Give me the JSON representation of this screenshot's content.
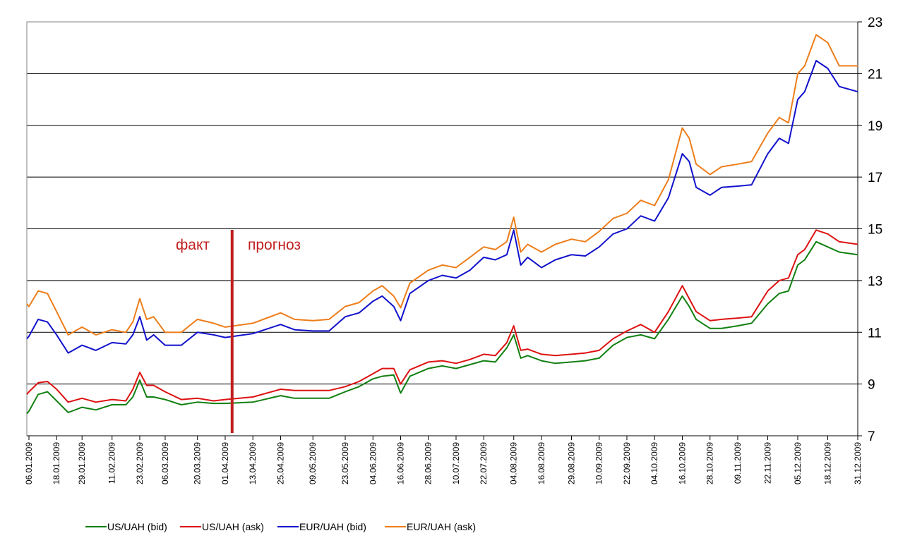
{
  "chart_data": {
    "type": "line",
    "x_ticks": [
      "06.01.2009",
      "18.01.2009",
      "29.01.2009",
      "11.02.2009",
      "23.02.2009",
      "06.03.2009",
      "20.03.2009",
      "01.04.2009",
      "13.04.2009",
      "25.04.2009",
      "09.05.2009",
      "23.05.2009",
      "04.06.2009",
      "16.06.2009",
      "28.06.2009",
      "10.07.2009",
      "22.07.2009",
      "04.08.2009",
      "16.08.2009",
      "29.08.2009",
      "10.09.2009",
      "22.09.2009",
      "04.10.2009",
      "16.10.2009",
      "28.10.2009",
      "09.11.2009",
      "22.11.2009",
      "05.12.2009",
      "18.12.2009",
      "31.12.2009"
    ],
    "y_ticks": [
      "7",
      "9",
      "11",
      "13",
      "15",
      "17",
      "19",
      "21",
      "23"
    ],
    "ylim": [
      7,
      23
    ],
    "y_axis_side": "right",
    "grid": "horizontal",
    "legend_position": "bottom",
    "annotations": [
      {
        "text": "факт",
        "color": "#c0201f"
      },
      {
        "text": "прогноз",
        "color": "#c0201f"
      }
    ],
    "divider": {
      "x": "04.04.2009",
      "color": "#c0201f"
    },
    "series": [
      {
        "name": "US/UAH (bid)",
        "color": "#118011",
        "points": [
          [
            "01.01.2009",
            7.85
          ],
          [
            "06.01.2009",
            7.95
          ],
          [
            "10.01.2009",
            8.6
          ],
          [
            "14.01.2009",
            8.7
          ],
          [
            "18.01.2009",
            8.35
          ],
          [
            "23.01.2009",
            7.9
          ],
          [
            "29.01.2009",
            8.1
          ],
          [
            "04.02.2009",
            8.0
          ],
          [
            "11.02.2009",
            8.2
          ],
          [
            "17.02.2009",
            8.2
          ],
          [
            "20.02.2009",
            8.5
          ],
          [
            "23.02.2009",
            9.15
          ],
          [
            "26.02.2009",
            8.5
          ],
          [
            "01.03.2009",
            8.5
          ],
          [
            "06.03.2009",
            8.4
          ],
          [
            "13.03.2009",
            8.2
          ],
          [
            "20.03.2009",
            8.3
          ],
          [
            "27.03.2009",
            8.25
          ],
          [
            "01.04.2009",
            8.25
          ],
          [
            "13.04.2009",
            8.3
          ],
          [
            "25.04.2009",
            8.55
          ],
          [
            "01.05.2009",
            8.45
          ],
          [
            "09.05.2009",
            8.45
          ],
          [
            "16.05.2009",
            8.45
          ],
          [
            "23.05.2009",
            8.7
          ],
          [
            "29.05.2009",
            8.9
          ],
          [
            "04.06.2009",
            9.2
          ],
          [
            "08.06.2009",
            9.3
          ],
          [
            "13.06.2009",
            9.35
          ],
          [
            "16.06.2009",
            8.65
          ],
          [
            "20.06.2009",
            9.3
          ],
          [
            "28.06.2009",
            9.6
          ],
          [
            "04.07.2009",
            9.7
          ],
          [
            "10.07.2009",
            9.6
          ],
          [
            "16.07.2009",
            9.75
          ],
          [
            "22.07.2009",
            9.9
          ],
          [
            "27.07.2009",
            9.85
          ],
          [
            "01.08.2009",
            10.4
          ],
          [
            "04.08.2009",
            10.9
          ],
          [
            "07.08.2009",
            10.0
          ],
          [
            "10.08.2009",
            10.1
          ],
          [
            "16.08.2009",
            9.9
          ],
          [
            "22.08.2009",
            9.8
          ],
          [
            "29.08.2009",
            9.85
          ],
          [
            "04.09.2009",
            9.9
          ],
          [
            "10.09.2009",
            10.0
          ],
          [
            "16.09.2009",
            10.5
          ],
          [
            "22.09.2009",
            10.8
          ],
          [
            "28.09.2009",
            10.9
          ],
          [
            "04.10.2009",
            10.75
          ],
          [
            "10.10.2009",
            11.5
          ],
          [
            "16.10.2009",
            12.4
          ],
          [
            "19.10.2009",
            12.0
          ],
          [
            "22.10.2009",
            11.5
          ],
          [
            "28.10.2009",
            11.15
          ],
          [
            "02.11.2009",
            11.15
          ],
          [
            "09.11.2009",
            11.25
          ],
          [
            "15.11.2009",
            11.35
          ],
          [
            "22.11.2009",
            12.1
          ],
          [
            "27.11.2009",
            12.5
          ],
          [
            "01.12.2009",
            12.6
          ],
          [
            "05.12.2009",
            13.6
          ],
          [
            "08.12.2009",
            13.8
          ],
          [
            "13.12.2009",
            14.5
          ],
          [
            "18.12.2009",
            14.3
          ],
          [
            "23.12.2009",
            14.1
          ],
          [
            "31.12.2009",
            14.0
          ]
        ]
      },
      {
        "name": "US/UAH (ask)",
        "color": "#dd1111",
        "points": [
          [
            "01.01.2009",
            8.6
          ],
          [
            "06.01.2009",
            8.7
          ],
          [
            "10.01.2009",
            9.05
          ],
          [
            "14.01.2009",
            9.1
          ],
          [
            "18.01.2009",
            8.8
          ],
          [
            "23.01.2009",
            8.3
          ],
          [
            "29.01.2009",
            8.45
          ],
          [
            "04.02.2009",
            8.3
          ],
          [
            "11.02.2009",
            8.4
          ],
          [
            "17.02.2009",
            8.35
          ],
          [
            "20.02.2009",
            8.8
          ],
          [
            "23.02.2009",
            9.45
          ],
          [
            "26.02.2009",
            8.95
          ],
          [
            "01.03.2009",
            8.95
          ],
          [
            "06.03.2009",
            8.7
          ],
          [
            "13.03.2009",
            8.4
          ],
          [
            "20.03.2009",
            8.45
          ],
          [
            "27.03.2009",
            8.35
          ],
          [
            "01.04.2009",
            8.4
          ],
          [
            "13.04.2009",
            8.5
          ],
          [
            "25.04.2009",
            8.8
          ],
          [
            "01.05.2009",
            8.75
          ],
          [
            "09.05.2009",
            8.75
          ],
          [
            "16.05.2009",
            8.75
          ],
          [
            "23.05.2009",
            8.9
          ],
          [
            "29.05.2009",
            9.1
          ],
          [
            "04.06.2009",
            9.4
          ],
          [
            "08.06.2009",
            9.6
          ],
          [
            "13.06.2009",
            9.6
          ],
          [
            "16.06.2009",
            9.0
          ],
          [
            "20.06.2009",
            9.55
          ],
          [
            "28.06.2009",
            9.85
          ],
          [
            "04.07.2009",
            9.9
          ],
          [
            "10.07.2009",
            9.8
          ],
          [
            "16.07.2009",
            9.95
          ],
          [
            "22.07.2009",
            10.15
          ],
          [
            "27.07.2009",
            10.1
          ],
          [
            "01.08.2009",
            10.6
          ],
          [
            "04.08.2009",
            11.25
          ],
          [
            "07.08.2009",
            10.3
          ],
          [
            "10.08.2009",
            10.35
          ],
          [
            "16.08.2009",
            10.15
          ],
          [
            "22.08.2009",
            10.1
          ],
          [
            "29.08.2009",
            10.15
          ],
          [
            "04.09.2009",
            10.2
          ],
          [
            "10.09.2009",
            10.3
          ],
          [
            "16.09.2009",
            10.75
          ],
          [
            "22.09.2009",
            11.05
          ],
          [
            "28.09.2009",
            11.3
          ],
          [
            "04.10.2009",
            11.0
          ],
          [
            "10.10.2009",
            11.8
          ],
          [
            "16.10.2009",
            12.8
          ],
          [
            "19.10.2009",
            12.3
          ],
          [
            "22.10.2009",
            11.8
          ],
          [
            "28.10.2009",
            11.45
          ],
          [
            "02.11.2009",
            11.5
          ],
          [
            "09.11.2009",
            11.55
          ],
          [
            "15.11.2009",
            11.6
          ],
          [
            "22.11.2009",
            12.6
          ],
          [
            "27.11.2009",
            13.0
          ],
          [
            "01.12.2009",
            13.1
          ],
          [
            "05.12.2009",
            14.0
          ],
          [
            "08.12.2009",
            14.2
          ],
          [
            "13.12.2009",
            14.95
          ],
          [
            "18.12.2009",
            14.8
          ],
          [
            "23.12.2009",
            14.5
          ],
          [
            "31.12.2009",
            14.4
          ]
        ]
      },
      {
        "name": "EUR/UAH (bid)",
        "color": "#1111cc",
        "points": [
          [
            "01.01.2009",
            10.75
          ],
          [
            "06.01.2009",
            10.85
          ],
          [
            "10.01.2009",
            11.5
          ],
          [
            "14.01.2009",
            11.4
          ],
          [
            "18.01.2009",
            10.9
          ],
          [
            "23.01.2009",
            10.2
          ],
          [
            "29.01.2009",
            10.5
          ],
          [
            "04.02.2009",
            10.3
          ],
          [
            "11.02.2009",
            10.6
          ],
          [
            "17.02.2009",
            10.55
          ],
          [
            "20.02.2009",
            10.9
          ],
          [
            "23.02.2009",
            11.6
          ],
          [
            "26.02.2009",
            10.7
          ],
          [
            "01.03.2009",
            10.9
          ],
          [
            "06.03.2009",
            10.5
          ],
          [
            "13.03.2009",
            10.5
          ],
          [
            "20.03.2009",
            11.0
          ],
          [
            "27.03.2009",
            10.9
          ],
          [
            "01.04.2009",
            10.8
          ],
          [
            "13.04.2009",
            10.95
          ],
          [
            "25.04.2009",
            11.3
          ],
          [
            "01.05.2009",
            11.1
          ],
          [
            "09.05.2009",
            11.05
          ],
          [
            "16.05.2009",
            11.05
          ],
          [
            "23.05.2009",
            11.6
          ],
          [
            "29.05.2009",
            11.75
          ],
          [
            "04.06.2009",
            12.2
          ],
          [
            "08.06.2009",
            12.4
          ],
          [
            "13.06.2009",
            12.0
          ],
          [
            "16.06.2009",
            11.45
          ],
          [
            "20.06.2009",
            12.5
          ],
          [
            "28.06.2009",
            13.0
          ],
          [
            "04.07.2009",
            13.2
          ],
          [
            "10.07.2009",
            13.1
          ],
          [
            "16.07.2009",
            13.4
          ],
          [
            "22.07.2009",
            13.9
          ],
          [
            "27.07.2009",
            13.8
          ],
          [
            "01.08.2009",
            14.0
          ],
          [
            "04.08.2009",
            14.95
          ],
          [
            "07.08.2009",
            13.6
          ],
          [
            "10.08.2009",
            13.9
          ],
          [
            "16.08.2009",
            13.5
          ],
          [
            "22.08.2009",
            13.8
          ],
          [
            "29.08.2009",
            14.0
          ],
          [
            "04.09.2009",
            13.95
          ],
          [
            "10.09.2009",
            14.3
          ],
          [
            "16.09.2009",
            14.8
          ],
          [
            "22.09.2009",
            15.0
          ],
          [
            "28.09.2009",
            15.5
          ],
          [
            "04.10.2009",
            15.3
          ],
          [
            "10.10.2009",
            16.2
          ],
          [
            "16.10.2009",
            17.9
          ],
          [
            "19.10.2009",
            17.6
          ],
          [
            "22.10.2009",
            16.6
          ],
          [
            "28.10.2009",
            16.3
          ],
          [
            "02.11.2009",
            16.6
          ],
          [
            "09.11.2009",
            16.65
          ],
          [
            "15.11.2009",
            16.7
          ],
          [
            "22.11.2009",
            17.9
          ],
          [
            "27.11.2009",
            18.5
          ],
          [
            "01.12.2009",
            18.3
          ],
          [
            "05.12.2009",
            20.0
          ],
          [
            "08.12.2009",
            20.3
          ],
          [
            "13.12.2009",
            21.5
          ],
          [
            "18.12.2009",
            21.2
          ],
          [
            "23.12.2009",
            20.5
          ],
          [
            "31.12.2009",
            20.3
          ]
        ]
      },
      {
        "name": "EUR/UAH (ask)",
        "color": "#ed7d1a",
        "points": [
          [
            "01.01.2009",
            12.1
          ],
          [
            "06.01.2009",
            12.0
          ],
          [
            "10.01.2009",
            12.6
          ],
          [
            "14.01.2009",
            12.5
          ],
          [
            "18.01.2009",
            11.8
          ],
          [
            "23.01.2009",
            10.9
          ],
          [
            "29.01.2009",
            11.2
          ],
          [
            "04.02.2009",
            10.9
          ],
          [
            "11.02.2009",
            11.1
          ],
          [
            "17.02.2009",
            11.0
          ],
          [
            "20.02.2009",
            11.4
          ],
          [
            "23.02.2009",
            12.3
          ],
          [
            "26.02.2009",
            11.5
          ],
          [
            "01.03.2009",
            11.6
          ],
          [
            "06.03.2009",
            11.0
          ],
          [
            "13.03.2009",
            11.0
          ],
          [
            "20.03.2009",
            11.5
          ],
          [
            "27.03.2009",
            11.35
          ],
          [
            "01.04.2009",
            11.2
          ],
          [
            "13.04.2009",
            11.35
          ],
          [
            "25.04.2009",
            11.75
          ],
          [
            "01.05.2009",
            11.5
          ],
          [
            "09.05.2009",
            11.45
          ],
          [
            "16.05.2009",
            11.5
          ],
          [
            "23.05.2009",
            12.0
          ],
          [
            "29.05.2009",
            12.15
          ],
          [
            "04.06.2009",
            12.6
          ],
          [
            "08.06.2009",
            12.8
          ],
          [
            "13.06.2009",
            12.4
          ],
          [
            "16.06.2009",
            11.95
          ],
          [
            "20.06.2009",
            12.9
          ],
          [
            "28.06.2009",
            13.4
          ],
          [
            "04.07.2009",
            13.6
          ],
          [
            "10.07.2009",
            13.5
          ],
          [
            "16.07.2009",
            13.9
          ],
          [
            "22.07.2009",
            14.3
          ],
          [
            "27.07.2009",
            14.2
          ],
          [
            "01.08.2009",
            14.5
          ],
          [
            "04.08.2009",
            15.45
          ],
          [
            "07.08.2009",
            14.1
          ],
          [
            "10.08.2009",
            14.4
          ],
          [
            "16.08.2009",
            14.1
          ],
          [
            "22.08.2009",
            14.4
          ],
          [
            "29.08.2009",
            14.6
          ],
          [
            "04.09.2009",
            14.5
          ],
          [
            "10.09.2009",
            14.9
          ],
          [
            "16.09.2009",
            15.4
          ],
          [
            "22.09.2009",
            15.6
          ],
          [
            "28.09.2009",
            16.1
          ],
          [
            "04.10.2009",
            15.9
          ],
          [
            "10.10.2009",
            16.9
          ],
          [
            "16.10.2009",
            18.9
          ],
          [
            "19.10.2009",
            18.5
          ],
          [
            "22.10.2009",
            17.5
          ],
          [
            "28.10.2009",
            17.1
          ],
          [
            "02.11.2009",
            17.4
          ],
          [
            "09.11.2009",
            17.5
          ],
          [
            "15.11.2009",
            17.6
          ],
          [
            "22.11.2009",
            18.7
          ],
          [
            "27.11.2009",
            19.3
          ],
          [
            "01.12.2009",
            19.1
          ],
          [
            "05.12.2009",
            21.0
          ],
          [
            "08.12.2009",
            21.3
          ],
          [
            "13.12.2009",
            22.5
          ],
          [
            "18.12.2009",
            22.2
          ],
          [
            "23.12.2009",
            21.3
          ],
          [
            "31.12.2009",
            21.3
          ]
        ]
      }
    ]
  }
}
